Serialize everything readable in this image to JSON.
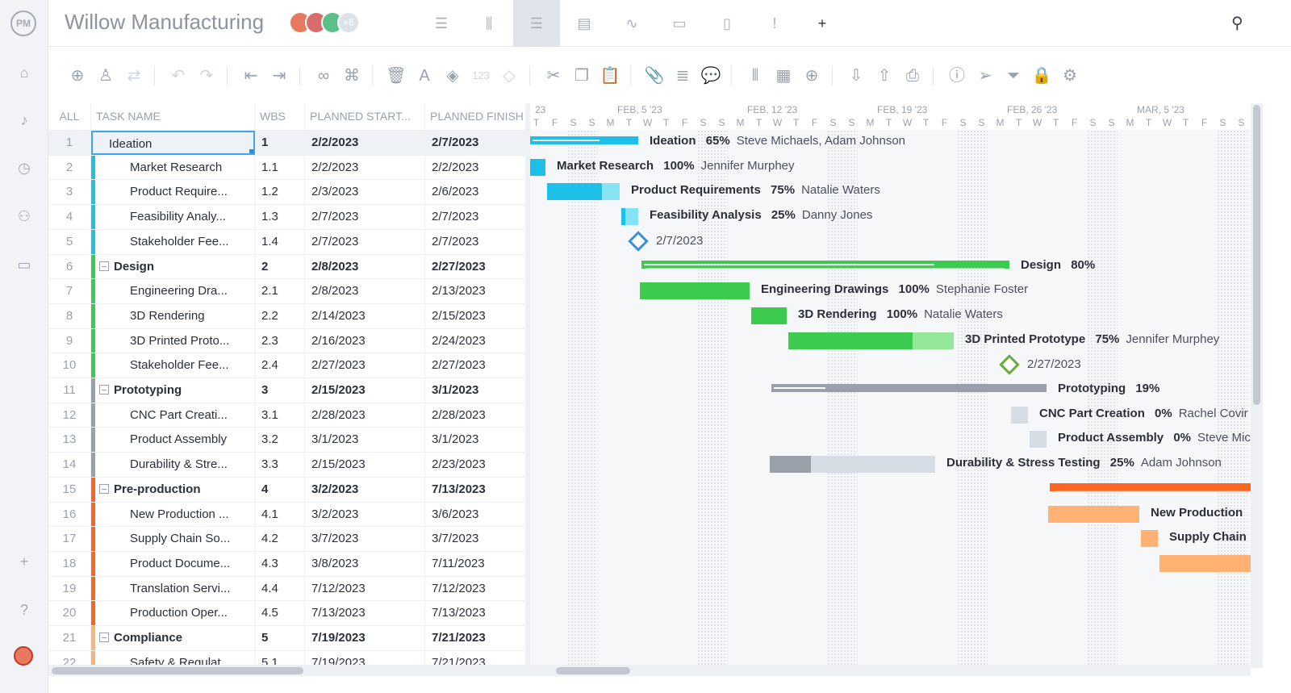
{
  "app": {
    "logo": "PM",
    "project_title": "Willow Manufacturing",
    "extra_members": "+6",
    "avatars": [
      {
        "color": "#e8785e"
      },
      {
        "color": "#d86c6c"
      },
      {
        "color": "#5bbf8a"
      }
    ]
  },
  "views": [
    {
      "icon": "list-view-icon",
      "glyph": "☰"
    },
    {
      "icon": "board-view-icon",
      "glyph": "⫼"
    },
    {
      "icon": "gantt-view-icon",
      "glyph": "☰",
      "active": true
    },
    {
      "icon": "sheet-view-icon",
      "glyph": "▤"
    },
    {
      "icon": "dashboard-view-icon",
      "glyph": "∿"
    },
    {
      "icon": "calendar-view-icon",
      "glyph": "▭"
    },
    {
      "icon": "files-view-icon",
      "glyph": "▯"
    },
    {
      "icon": "risks-view-icon",
      "glyph": "!"
    },
    {
      "icon": "add-view-icon",
      "glyph": "+"
    }
  ],
  "sidebar": [
    {
      "icon": "home-icon",
      "glyph": "⌂"
    },
    {
      "icon": "notifications-icon",
      "glyph": "♪"
    },
    {
      "icon": "clock-icon",
      "glyph": "◷"
    },
    {
      "icon": "team-icon",
      "glyph": "⚇"
    },
    {
      "icon": "briefcase-icon",
      "glyph": "▭"
    },
    {
      "icon": "add-icon",
      "glyph": "+"
    },
    {
      "icon": "help-icon",
      "glyph": "?"
    }
  ],
  "toolbar": [
    {
      "icon": "add-task-icon",
      "glyph": "⊕"
    },
    {
      "icon": "assign-user-icon",
      "glyph": "♙"
    },
    {
      "icon": "recurring-icon",
      "glyph": "⇄",
      "disabled": true
    },
    {
      "sep": true
    },
    {
      "icon": "undo-icon",
      "glyph": "↶",
      "disabled": true
    },
    {
      "icon": "redo-icon",
      "glyph": "↷",
      "disabled": true
    },
    {
      "sep": true
    },
    {
      "icon": "outdent-icon",
      "glyph": "⇤"
    },
    {
      "icon": "indent-icon",
      "glyph": "⇥"
    },
    {
      "sep": true
    },
    {
      "icon": "link-icon",
      "glyph": "∞"
    },
    {
      "icon": "unlink-icon",
      "glyph": "⌘"
    },
    {
      "sep": true
    },
    {
      "icon": "delete-icon",
      "glyph": "🗑"
    },
    {
      "icon": "text-color-icon",
      "glyph": "A"
    },
    {
      "icon": "fill-color-icon",
      "glyph": "◈"
    },
    {
      "icon": "number-format-icon",
      "glyph": "123",
      "disabled": true
    },
    {
      "icon": "milestone-icon",
      "glyph": "◇",
      "disabled": true
    },
    {
      "sep": true
    },
    {
      "icon": "cut-icon",
      "glyph": "✂"
    },
    {
      "icon": "copy-icon",
      "glyph": "❐"
    },
    {
      "icon": "paste-icon",
      "glyph": "📋"
    },
    {
      "sep": true
    },
    {
      "icon": "attachment-icon",
      "glyph": "📎"
    },
    {
      "icon": "notes-icon",
      "glyph": "≣"
    },
    {
      "icon": "comment-icon",
      "glyph": "💬"
    },
    {
      "sep": true
    },
    {
      "icon": "columns-icon",
      "glyph": "⫴"
    },
    {
      "icon": "grid-icon",
      "glyph": "▦"
    },
    {
      "icon": "zoom-icon",
      "glyph": "⊕"
    },
    {
      "sep": true
    },
    {
      "icon": "import-icon",
      "glyph": "⇩"
    },
    {
      "icon": "export-icon",
      "glyph": "⇧"
    },
    {
      "icon": "print-icon",
      "glyph": "⎙"
    },
    {
      "sep": true
    },
    {
      "icon": "info-icon",
      "glyph": "ⓘ"
    },
    {
      "icon": "send-icon",
      "glyph": "➢"
    },
    {
      "icon": "filter-icon",
      "glyph": "⏷"
    },
    {
      "icon": "lock-icon",
      "glyph": "🔒",
      "disabled": true
    },
    {
      "icon": "settings-icon",
      "glyph": "⚙"
    }
  ],
  "grid": {
    "headers": {
      "all": "ALL",
      "task_name": "TASK NAME",
      "wbs": "WBS",
      "start": "PLANNED START...",
      "finish": "PLANNED FINISH"
    },
    "rows": [
      {
        "num": "1",
        "name": "Ideation",
        "wbs": "1",
        "start": "2/2/2023",
        "finish": "2/7/2023",
        "summary": true,
        "group": "ideation",
        "selected": true
      },
      {
        "num": "2",
        "name": "Market Research",
        "wbs": "1.1",
        "start": "2/2/2023",
        "finish": "2/2/2023",
        "group": "ideation"
      },
      {
        "num": "3",
        "name": "Product Require...",
        "wbs": "1.2",
        "start": "2/3/2023",
        "finish": "2/6/2023",
        "group": "ideation"
      },
      {
        "num": "4",
        "name": "Feasibility Analy...",
        "wbs": "1.3",
        "start": "2/7/2023",
        "finish": "2/7/2023",
        "group": "ideation"
      },
      {
        "num": "5",
        "name": "Stakeholder Fee...",
        "wbs": "1.4",
        "start": "2/7/2023",
        "finish": "2/7/2023",
        "group": "ideation"
      },
      {
        "num": "6",
        "name": "Design",
        "wbs": "2",
        "start": "2/8/2023",
        "finish": "2/27/2023",
        "summary": true,
        "group": "design"
      },
      {
        "num": "7",
        "name": "Engineering Dra...",
        "wbs": "2.1",
        "start": "2/8/2023",
        "finish": "2/13/2023",
        "group": "design"
      },
      {
        "num": "8",
        "name": "3D Rendering",
        "wbs": "2.2",
        "start": "2/14/2023",
        "finish": "2/15/2023",
        "group": "design"
      },
      {
        "num": "9",
        "name": "3D Printed Proto...",
        "wbs": "2.3",
        "start": "2/16/2023",
        "finish": "2/24/2023",
        "group": "design"
      },
      {
        "num": "10",
        "name": "Stakeholder Fee...",
        "wbs": "2.4",
        "start": "2/27/2023",
        "finish": "2/27/2023",
        "group": "design"
      },
      {
        "num": "11",
        "name": "Prototyping",
        "wbs": "3",
        "start": "2/15/2023",
        "finish": "3/1/2023",
        "summary": true,
        "group": "prototyping"
      },
      {
        "num": "12",
        "name": "CNC Part Creati...",
        "wbs": "3.1",
        "start": "2/28/2023",
        "finish": "2/28/2023",
        "group": "prototyping"
      },
      {
        "num": "13",
        "name": "Product Assembly",
        "wbs": "3.2",
        "start": "3/1/2023",
        "finish": "3/1/2023",
        "group": "prototyping"
      },
      {
        "num": "14",
        "name": "Durability & Stre...",
        "wbs": "3.3",
        "start": "2/15/2023",
        "finish": "2/23/2023",
        "group": "prototyping"
      },
      {
        "num": "15",
        "name": "Pre-production",
        "wbs": "4",
        "start": "3/2/2023",
        "finish": "7/13/2023",
        "summary": true,
        "group": "preproduction"
      },
      {
        "num": "16",
        "name": "New Production ...",
        "wbs": "4.1",
        "start": "3/2/2023",
        "finish": "3/6/2023",
        "group": "preproduction"
      },
      {
        "num": "17",
        "name": "Supply Chain So...",
        "wbs": "4.2",
        "start": "3/7/2023",
        "finish": "3/7/2023",
        "group": "preproduction"
      },
      {
        "num": "18",
        "name": "Product Docume...",
        "wbs": "4.3",
        "start": "3/8/2023",
        "finish": "7/11/2023",
        "group": "preproduction"
      },
      {
        "num": "19",
        "name": "Translation Servi...",
        "wbs": "4.4",
        "start": "7/12/2023",
        "finish": "7/12/2023",
        "group": "preproduction"
      },
      {
        "num": "20",
        "name": "Production Oper...",
        "wbs": "4.5",
        "start": "7/13/2023",
        "finish": "7/13/2023",
        "group": "preproduction"
      },
      {
        "num": "21",
        "name": "Compliance",
        "wbs": "5",
        "start": "7/19/2023",
        "finish": "7/21/2023",
        "summary": true,
        "group": "compliance"
      },
      {
        "num": "22",
        "name": "Safety & Regulat...",
        "wbs": "5.1",
        "start": "7/19/2023",
        "finish": "7/21/2023",
        "group": "compliance"
      }
    ]
  },
  "colors": {
    "ideation": {
      "main": "#1cc0e8",
      "light": "#86e3f3"
    },
    "design": {
      "main": "#3ccb4e",
      "light": "#95e89a"
    },
    "prototyping": {
      "main": "#9aa0aa",
      "light": "#d6dce4"
    },
    "preproduction": {
      "main": "#ff6420",
      "light": "#ffb274"
    },
    "compliance": {
      "main": "#ffb274",
      "light": "#ffd2a8"
    }
  },
  "timeline": {
    "weeks": [
      "23",
      "FEB, 5 '23",
      "FEB, 12 '23",
      "FEB, 19 '23",
      "FEB, 26 '23",
      "MAR, 5 '23"
    ],
    "days": [
      "T",
      "F",
      "S",
      "S",
      "M",
      "T",
      "W",
      "T",
      "F",
      "S",
      "S",
      "M",
      "T",
      "W",
      "T",
      "F",
      "S",
      "S",
      "M",
      "T",
      "W",
      "T",
      "F",
      "S",
      "S",
      "M",
      "T",
      "W",
      "T",
      "F",
      "S",
      "S",
      "M",
      "T",
      "W",
      "T",
      "F",
      "S",
      "S"
    ]
  },
  "gantt": [
    {
      "row": 1,
      "kind": "summary",
      "name": "Ideation",
      "pct": "65%",
      "assignee": "Steve Michaels, Adam Johnson",
      "progress": 0.65
    },
    {
      "row": 2,
      "kind": "task",
      "name": "Market Research",
      "pct": "100%",
      "assignee": "Jennifer Murphey",
      "progress": 1
    },
    {
      "row": 3,
      "kind": "task",
      "name": "Product Requirements",
      "pct": "75%",
      "assignee": "Natalie Waters",
      "progress": 0.75
    },
    {
      "row": 4,
      "kind": "task",
      "name": "Feasibility Analysis",
      "pct": "25%",
      "assignee": "Danny Jones",
      "progress": 0.25
    },
    {
      "row": 5,
      "kind": "milestone",
      "date": "2/7/2023"
    },
    {
      "row": 6,
      "kind": "summary",
      "name": "Design",
      "pct": "80%",
      "assignee": "",
      "progress": 0.8
    },
    {
      "row": 7,
      "kind": "task",
      "name": "Engineering Drawings",
      "pct": "100%",
      "assignee": "Stephanie Foster",
      "progress": 1
    },
    {
      "row": 8,
      "kind": "task",
      "name": "3D Rendering",
      "pct": "100%",
      "assignee": "Natalie Waters",
      "progress": 1
    },
    {
      "row": 9,
      "kind": "task",
      "name": "3D Printed Prototype",
      "pct": "75%",
      "assignee": "Jennifer Murphey",
      "progress": 0.75
    },
    {
      "row": 10,
      "kind": "milestone",
      "date": "2/27/2023"
    },
    {
      "row": 11,
      "kind": "summary",
      "name": "Prototyping",
      "pct": "19%",
      "assignee": "",
      "progress": 0.19
    },
    {
      "row": 12,
      "kind": "task",
      "name": "CNC Part Creation",
      "pct": "0%",
      "assignee": "Rachel Covir",
      "progress": 0
    },
    {
      "row": 13,
      "kind": "task",
      "name": "Product Assembly",
      "pct": "0%",
      "assignee": "Steve Mic",
      "progress": 0
    },
    {
      "row": 14,
      "kind": "task",
      "name": "Durability & Stress Testing",
      "pct": "25%",
      "assignee": "Adam Johnson",
      "progress": 0.25
    },
    {
      "row": 15,
      "kind": "summary",
      "name": "",
      "pct": "",
      "assignee": "",
      "progress": 0
    },
    {
      "row": 16,
      "kind": "task",
      "name": "New Production",
      "pct": "",
      "assignee": "",
      "progress": 0
    },
    {
      "row": 17,
      "kind": "task",
      "name": "Supply Chain",
      "pct": "",
      "assignee": "",
      "progress": 0
    },
    {
      "row": 18,
      "kind": "task",
      "name": "",
      "pct": "",
      "assignee": "",
      "progress": 0
    }
  ]
}
